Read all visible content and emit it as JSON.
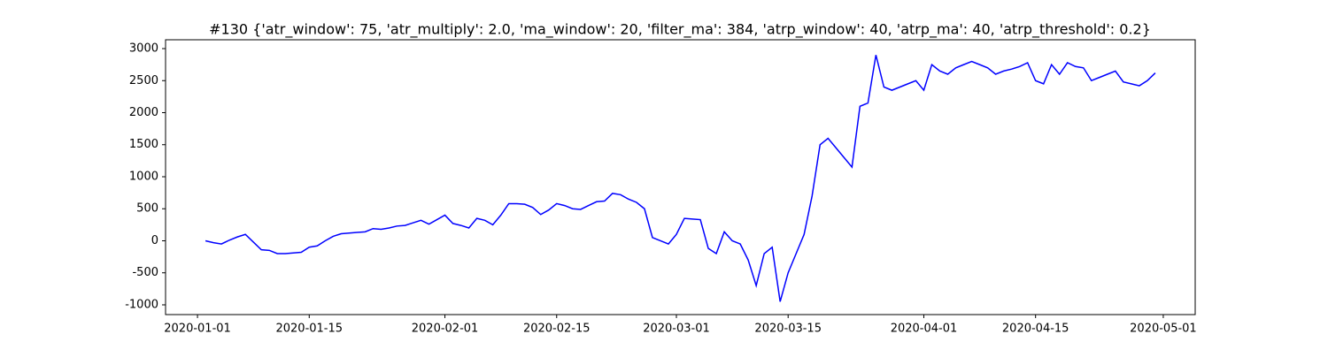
{
  "chart_data": {
    "type": "line",
    "title": "#130 {'atr_window': 75, 'atr_multiply': 2.0, 'ma_window': 20, 'filter_ma': 384, 'atrp_window': 40, 'atrp_ma': 40, 'atrp_threshold': 0.2}",
    "x": [
      "2020-01-02",
      "2020-01-03",
      "2020-01-04",
      "2020-01-05",
      "2020-01-06",
      "2020-01-07",
      "2020-01-08",
      "2020-01-09",
      "2020-01-10",
      "2020-01-11",
      "2020-01-12",
      "2020-01-13",
      "2020-01-14",
      "2020-01-15",
      "2020-01-16",
      "2020-01-17",
      "2020-01-18",
      "2020-01-19",
      "2020-01-20",
      "2020-01-21",
      "2020-01-22",
      "2020-01-23",
      "2020-01-24",
      "2020-01-25",
      "2020-01-26",
      "2020-01-27",
      "2020-01-28",
      "2020-01-29",
      "2020-01-30",
      "2020-01-31",
      "2020-02-01",
      "2020-02-02",
      "2020-02-03",
      "2020-02-04",
      "2020-02-05",
      "2020-02-06",
      "2020-02-07",
      "2020-02-08",
      "2020-02-09",
      "2020-02-10",
      "2020-02-11",
      "2020-02-12",
      "2020-02-13",
      "2020-02-14",
      "2020-02-15",
      "2020-02-16",
      "2020-02-17",
      "2020-02-18",
      "2020-02-19",
      "2020-02-20",
      "2020-02-21",
      "2020-02-22",
      "2020-02-23",
      "2020-02-24",
      "2020-02-25",
      "2020-02-26",
      "2020-02-27",
      "2020-02-28",
      "2020-02-29",
      "2020-03-01",
      "2020-03-02",
      "2020-03-03",
      "2020-03-04",
      "2020-03-05",
      "2020-03-06",
      "2020-03-07",
      "2020-03-08",
      "2020-03-09",
      "2020-03-10",
      "2020-03-11",
      "2020-03-12",
      "2020-03-13",
      "2020-03-14",
      "2020-03-15",
      "2020-03-16",
      "2020-03-17",
      "2020-03-18",
      "2020-03-19",
      "2020-03-20",
      "2020-03-21",
      "2020-03-22",
      "2020-03-23",
      "2020-03-24",
      "2020-03-25",
      "2020-03-26",
      "2020-03-27",
      "2020-03-28",
      "2020-03-29",
      "2020-03-30",
      "2020-03-31",
      "2020-04-01",
      "2020-04-02",
      "2020-04-03",
      "2020-04-04",
      "2020-04-05",
      "2020-04-06",
      "2020-04-07",
      "2020-04-08",
      "2020-04-09",
      "2020-04-10",
      "2020-04-11",
      "2020-04-12",
      "2020-04-13",
      "2020-04-14",
      "2020-04-15",
      "2020-04-16",
      "2020-04-17",
      "2020-04-18",
      "2020-04-19",
      "2020-04-20",
      "2020-04-21",
      "2020-04-22",
      "2020-04-23",
      "2020-04-24",
      "2020-04-25",
      "2020-04-26",
      "2020-04-27",
      "2020-04-28",
      "2020-04-29",
      "2020-04-30"
    ],
    "series": [
      {
        "color": "#0000ff",
        "values": [
          0,
          -30,
          -50,
          10,
          60,
          100,
          -20,
          -140,
          -150,
          -200,
          -200,
          -190,
          -180,
          -100,
          -80,
          0,
          70,
          110,
          120,
          130,
          140,
          190,
          180,
          200,
          230,
          240,
          280,
          320,
          260,
          330,
          400,
          270,
          240,
          200,
          350,
          320,
          250,
          400,
          580,
          580,
          570,
          520,
          410,
          480,
          580,
          550,
          500,
          490,
          550,
          610,
          620,
          740,
          720,
          650,
          600,
          500,
          50,
          0,
          -50,
          100,
          350,
          340,
          330,
          -120,
          -200,
          140,
          0,
          -50,
          -300,
          -700,
          -200,
          -100,
          -950,
          -500,
          -200,
          100,
          700,
          1500,
          1600,
          1450,
          1300,
          1150,
          2100,
          2150,
          2900,
          2400,
          2350,
          2400,
          2450,
          2500,
          2350,
          2750,
          2650,
          2600,
          2700,
          2750,
          2800,
          2750,
          2700,
          2600,
          2650,
          2680,
          2720,
          2780,
          2500,
          2450,
          2750,
          2600,
          2780,
          2720,
          2700,
          2500,
          2550,
          2600,
          2650,
          2480,
          2450,
          2420,
          2500,
          2620
        ]
      }
    ],
    "xlim": [
      "2019-12-28",
      "2020-05-05"
    ],
    "xticks": [
      "2020-01-01",
      "2020-01-15",
      "2020-02-01",
      "2020-02-15",
      "2020-03-01",
      "2020-03-15",
      "2020-04-01",
      "2020-04-15",
      "2020-05-01"
    ],
    "ylim": [
      -1152,
      3138
    ],
    "yticks": [
      -1000,
      -500,
      0,
      500,
      1000,
      1500,
      2000,
      2500,
      3000
    ]
  }
}
